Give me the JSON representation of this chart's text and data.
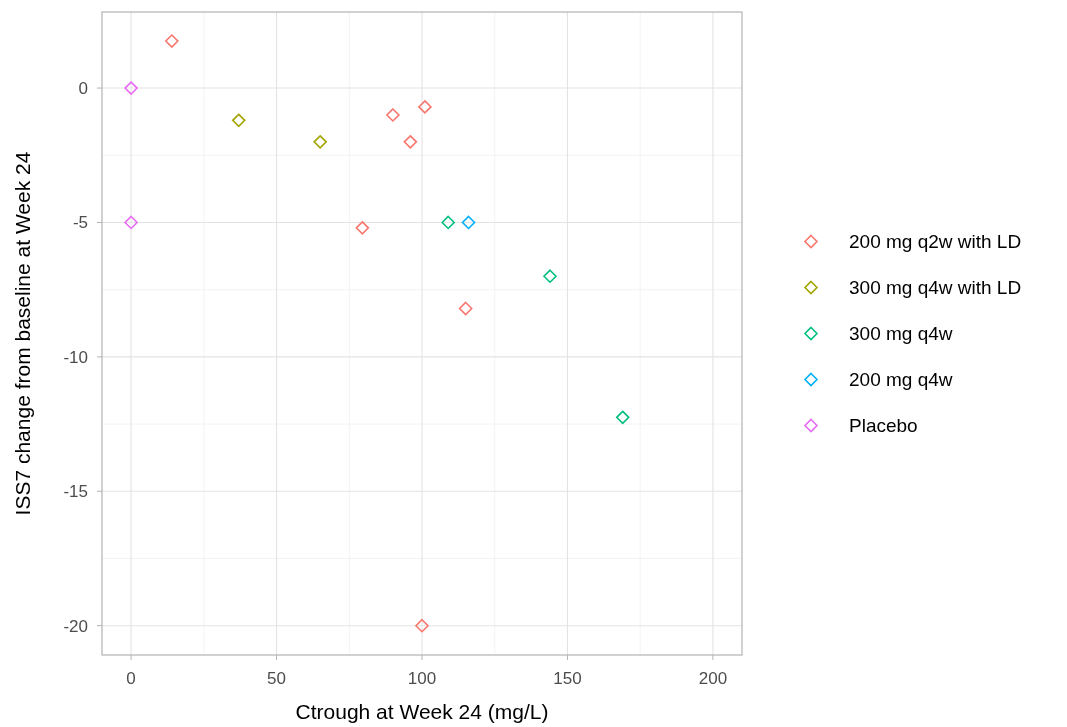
{
  "chart_data": {
    "type": "scatter",
    "xlabel": "Ctrough at Week 24 (mg/L)",
    "ylabel": "ISS7 change from baseline at Week 24",
    "xlim": [
      -10,
      210
    ],
    "ylim": [
      -21.09,
      2.83
    ],
    "xticks": [
      0,
      50,
      100,
      150,
      200
    ],
    "yticks": [
      -20,
      -15,
      -10,
      -5,
      0
    ],
    "grid": true,
    "legend": "right",
    "marker": "diamond",
    "series": [
      {
        "name": "200 mg q2w with LD",
        "color": "#f8766d",
        "x": [
          14,
          90,
          101,
          96,
          79.5,
          115,
          100
        ],
        "values": [
          1.75,
          -1,
          -0.7,
          -2,
          -5.2,
          -8.2,
          -20
        ]
      },
      {
        "name": "300 mg q4w with LD",
        "color": "#a3a500",
        "x": [
          37,
          65
        ],
        "values": [
          -1.2,
          -2
        ]
      },
      {
        "name": "300 mg q4w",
        "color": "#00bf7d",
        "x": [
          109,
          144,
          169
        ],
        "values": [
          -5,
          -7,
          -12.25
        ]
      },
      {
        "name": "200 mg q4w",
        "color": "#00b0f6",
        "x": [
          116
        ],
        "values": [
          -5
        ]
      },
      {
        "name": "Placebo",
        "color": "#e76bf3",
        "x": [
          0,
          0
        ],
        "values": [
          0,
          -5
        ]
      }
    ]
  }
}
